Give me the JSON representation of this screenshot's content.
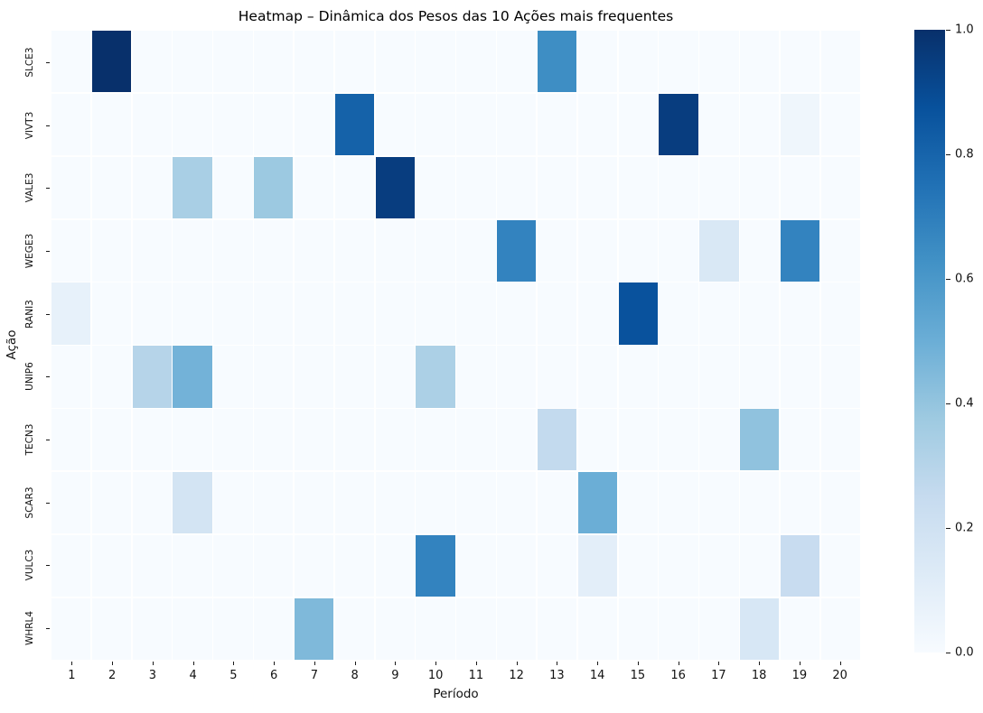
{
  "chart_data": {
    "type": "heatmap",
    "title": "Heatmap – Dinâmica dos Pesos das 10 Ações mais frequentes",
    "xlabel": "Período",
    "ylabel": "Ação",
    "x_categories": [
      "1",
      "2",
      "3",
      "4",
      "5",
      "6",
      "7",
      "8",
      "9",
      "10",
      "11",
      "12",
      "13",
      "14",
      "15",
      "16",
      "17",
      "18",
      "19",
      "20"
    ],
    "y_categories": [
      "SLCE3",
      "VIVT3",
      "VALE3",
      "WEGE3",
      "RANI3",
      "UNIP6",
      "TECN3",
      "SCAR3",
      "VULC3",
      "WHRL4"
    ],
    "series": [
      {
        "name": "SLCE3",
        "values": [
          0,
          1.0,
          0,
          0,
          0,
          0,
          0,
          0,
          0,
          0,
          0,
          0,
          0.64,
          0,
          0,
          0,
          0,
          0,
          0,
          0
        ]
      },
      {
        "name": "VIVT3",
        "values": [
          0,
          0,
          0,
          0,
          0,
          0,
          0,
          0.81,
          0,
          0,
          0,
          0,
          0,
          0,
          0,
          0.95,
          0,
          0,
          0.04,
          0
        ]
      },
      {
        "name": "VALE3",
        "values": [
          0,
          0,
          0,
          0.34,
          0,
          0.38,
          0,
          0,
          0.95,
          0,
          0,
          0,
          0,
          0,
          0,
          0,
          0,
          0,
          0,
          0
        ]
      },
      {
        "name": "WEGE3",
        "values": [
          0,
          0,
          0,
          0,
          0,
          0,
          0,
          0,
          0,
          0,
          0,
          0.68,
          0,
          0,
          0,
          0,
          0.15,
          0,
          0.68,
          0
        ]
      },
      {
        "name": "RANI3",
        "values": [
          0.08,
          0,
          0,
          0,
          0,
          0,
          0,
          0,
          0,
          0,
          0,
          0,
          0,
          0,
          0.87,
          0,
          0,
          0,
          0,
          0
        ]
      },
      {
        "name": "UNIP6",
        "values": [
          0,
          0,
          0.3,
          0.48,
          0,
          0,
          0,
          0,
          0,
          0.33,
          0,
          0,
          0,
          0,
          0,
          0,
          0,
          0,
          0,
          0
        ]
      },
      {
        "name": "TECN3",
        "values": [
          0,
          0,
          0,
          0,
          0,
          0,
          0,
          0,
          0,
          0,
          0,
          0,
          0.26,
          0,
          0,
          0,
          0,
          0.41,
          0,
          0
        ]
      },
      {
        "name": "SCAR3",
        "values": [
          0,
          0,
          0,
          0.18,
          0,
          0,
          0,
          0,
          0,
          0,
          0,
          0,
          0,
          0.5,
          0,
          0,
          0,
          0,
          0,
          0
        ]
      },
      {
        "name": "VULC3",
        "values": [
          0,
          0,
          0,
          0,
          0,
          0,
          0,
          0,
          0,
          0.68,
          0,
          0,
          0,
          0.1,
          0,
          0,
          0,
          0,
          0.24,
          0
        ]
      },
      {
        "name": "WHRL4",
        "values": [
          0,
          0,
          0,
          0,
          0,
          0,
          0.45,
          0,
          0,
          0,
          0,
          0,
          0,
          0,
          0,
          0,
          0,
          0.16,
          0,
          0
        ]
      }
    ],
    "value_range": [
      0.0,
      1.0
    ],
    "colormap": "Blues",
    "colormap_stops": [
      {
        "pos": 0.0,
        "color": "#f7fbff"
      },
      {
        "pos": 0.125,
        "color": "#deebf7"
      },
      {
        "pos": 0.25,
        "color": "#c6dbef"
      },
      {
        "pos": 0.375,
        "color": "#9ecae1"
      },
      {
        "pos": 0.5,
        "color": "#6baed6"
      },
      {
        "pos": 0.625,
        "color": "#4292c6"
      },
      {
        "pos": 0.75,
        "color": "#2171b5"
      },
      {
        "pos": 0.875,
        "color": "#08519c"
      },
      {
        "pos": 1.0,
        "color": "#08306b"
      }
    ],
    "colorbar_ticks": [
      "1.0",
      "0.8",
      "0.6",
      "0.4",
      "0.2",
      "0.0"
    ],
    "grid": true,
    "gridline_color": "#ffffff",
    "legend_position": "colorbar-right"
  },
  "colors": {
    "background": "#ffffff",
    "tick": "#1a1a1a",
    "text": "#111111"
  }
}
